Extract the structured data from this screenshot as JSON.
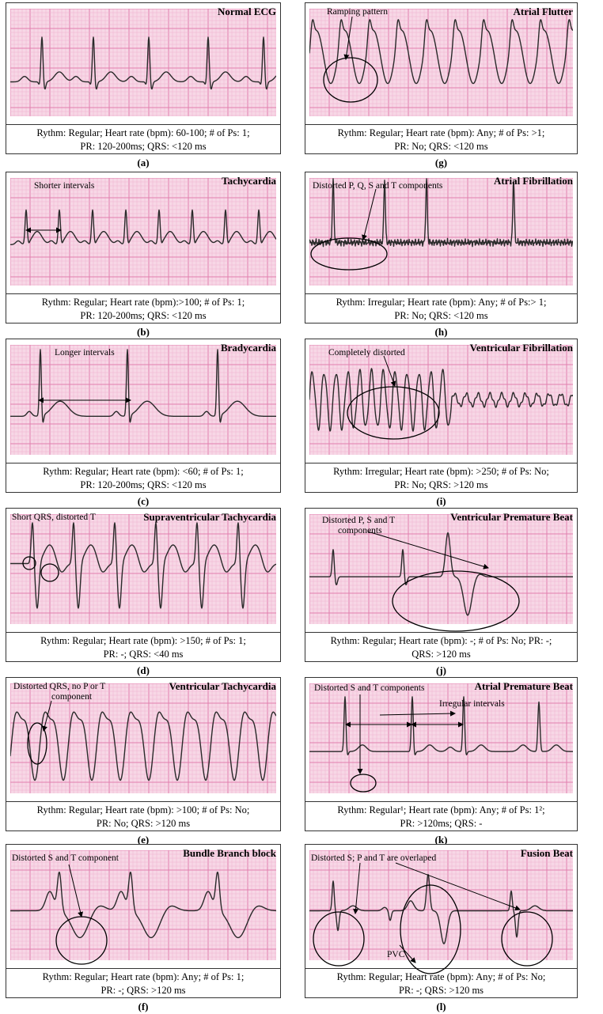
{
  "panels": [
    {
      "id": "a",
      "title": "Normal ECG",
      "annotations": [],
      "caption_line1": "Rythm: Regular; Heart rate (bpm): 60-100; # of Ps: 1;",
      "caption_line2": "PR: 120-200ms; QRS: <120 ms",
      "label": "(a)"
    },
    {
      "id": "b",
      "title": "Tachycardia",
      "annotations": [
        "Shorter intervals"
      ],
      "caption_line1": "Rythm: Regular; Heart rate (bpm):>100; # of Ps: 1;",
      "caption_line2": "PR: 120-200ms; QRS: <120 ms",
      "label": "(b)"
    },
    {
      "id": "c",
      "title": "Bradycardia",
      "annotations": [
        "Longer intervals"
      ],
      "caption_line1": "Rythm: Regular; Heart rate (bpm): <60; # of Ps: 1;",
      "caption_line2": "PR: 120-200ms; QRS: <120 ms",
      "label": "(c)"
    },
    {
      "id": "d",
      "title": "Supraventricular Tachycardia",
      "annotations": [
        "Short QRS, distorted T"
      ],
      "caption_line1": "Rythm: Regular; Heart rate (bpm): >150; # of Ps: 1;",
      "caption_line2": "PR: -; QRS: <40 ms",
      "label": "(d)"
    },
    {
      "id": "e",
      "title": "Ventricular Tachycardia",
      "annotations": [
        "Distorted QRS, no P or T",
        "component"
      ],
      "caption_line1": "Rythm: Regular; Heart rate (bpm): >100; # of Ps: No;",
      "caption_line2": "PR: No; QRS: >120 ms",
      "label": "(e)"
    },
    {
      "id": "f",
      "title": "Bundle Branch block",
      "annotations": [
        "Distorted S and T component"
      ],
      "caption_line1": "Rythm: Regular; Heart rate (bpm): Any; # of Ps: 1;",
      "caption_line2": "PR: -; QRS: >120 ms",
      "label": "(f)"
    },
    {
      "id": "g",
      "title": "Atrial Flutter",
      "annotations": [
        "Ramping pattern"
      ],
      "caption_line1": "Rythm: Regular; Heart rate (bpm): Any; # of Ps: >1;",
      "caption_line2": "PR: No; QRS: <120 ms",
      "label": "(g)"
    },
    {
      "id": "h",
      "title": "Atrial Fibrillation",
      "annotations": [
        "Distorted P, Q, S and T components"
      ],
      "caption_line1": "Rythm: Irregular; Heart rate (bpm): Any; # of Ps:> 1;",
      "caption_line2": "PR: No; QRS: <120 ms",
      "label": "(h)"
    },
    {
      "id": "i",
      "title": "Ventricular Fibrillation",
      "annotations": [
        "Completely distorted"
      ],
      "caption_line1": "Rythm: Irregular; Heart rate (bpm): >250; # of Ps: No;",
      "caption_line2": "PR: No; QRS: >120 ms",
      "label": "(i)"
    },
    {
      "id": "j",
      "title": "Ventricular Premature Beat",
      "annotations": [
        "Distorted P, S and T",
        "components"
      ],
      "caption_line1": "Rythm: Regular; Heart rate (bpm): -; # of Ps: No; PR: -;",
      "caption_line2": "QRS: >120 ms",
      "label": "(j)"
    },
    {
      "id": "k",
      "title": "Atrial Premature Beat",
      "annotations": [
        "Distorted S and T components",
        "Irregular intervals"
      ],
      "caption_line1": "Rythm: Regular¹; Heart rate (bpm): Any; # of Ps: 1²;",
      "caption_line2": "PR: >120ms; QRS: -",
      "label": "(k)"
    },
    {
      "id": "l",
      "title": "Fusion Beat",
      "annotations": [
        "Distorted S; P and T are overlaped",
        "PVC"
      ],
      "caption_line1": "Rythm: Regular; Heart rate (bpm): Any; # of Ps: No;",
      "caption_line2": "PR: -; QRS: >120 ms",
      "label": "(l)"
    }
  ],
  "colors": {
    "grid_bg": "#f7d7e6",
    "grid_minor": "#efb2cf",
    "grid_major": "#e27fae",
    "trace": "#2a2a2a",
    "border": "#333333"
  }
}
